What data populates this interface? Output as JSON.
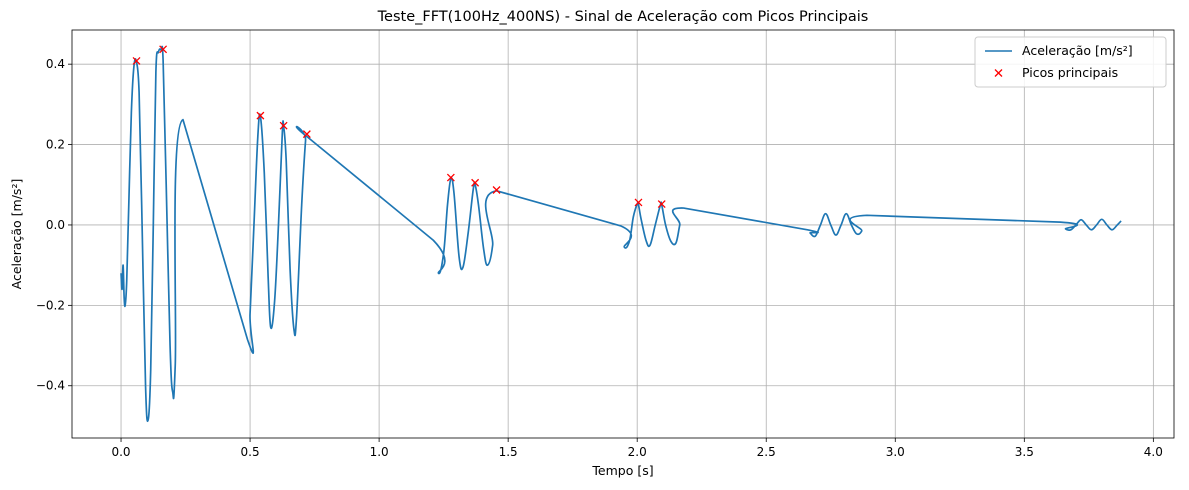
{
  "chart_data": {
    "type": "line",
    "title": "Teste_FFT(100Hz_400NS) - Sinal de Aceleração com Picos Principais",
    "xlabel": "Tempo [s]",
    "ylabel": "Aceleração [m/s²]",
    "xlim": [
      -0.19,
      4.08
    ],
    "ylim": [
      -0.53,
      0.485
    ],
    "xticks": [
      0.0,
      0.5,
      1.0,
      1.5,
      2.0,
      2.5,
      3.0,
      3.5,
      4.0
    ],
    "xtick_labels": [
      "0.0",
      "0.5",
      "1.0",
      "1.5",
      "2.0",
      "2.5",
      "3.0",
      "3.5",
      "4.0"
    ],
    "yticks": [
      -0.4,
      -0.2,
      0.0,
      0.2,
      0.4
    ],
    "ytick_labels": [
      "−0.4",
      "−0.2",
      "0.0",
      "0.2",
      "0.4"
    ],
    "grid": true,
    "legend_position": "top-right",
    "series": [
      {
        "name": "Aceleração [m/s²]",
        "kind": "line",
        "color": "#1f77b4",
        "x": [
          0.0,
          0.004,
          0.008,
          0.012,
          0.016,
          0.022,
          0.03,
          0.04,
          0.05,
          0.06,
          0.07,
          0.08,
          0.095,
          0.105,
          0.115,
          0.125,
          0.135,
          0.145,
          0.155,
          0.163,
          0.175,
          0.19,
          0.2,
          0.21,
          0.24,
          0.49,
          0.5,
          0.515,
          0.53,
          0.54,
          0.555,
          0.57,
          0.58,
          0.595,
          0.61,
          0.625,
          0.63,
          0.64,
          0.655,
          0.67,
          0.68,
          0.7,
          0.715,
          0.72,
          1.21,
          1.23,
          1.25,
          1.265,
          1.278,
          1.29,
          1.31,
          1.325,
          1.345,
          1.365,
          1.372,
          1.385,
          1.405,
          1.42,
          1.44,
          1.455,
          1.935,
          1.95,
          1.97,
          1.985,
          2.0,
          2.005,
          2.015,
          2.035,
          2.05,
          2.07,
          2.09,
          2.095,
          2.11,
          2.13,
          2.15,
          2.165,
          2.18,
          2.66,
          2.67,
          2.69,
          2.71,
          2.73,
          2.75,
          2.77,
          2.79,
          2.81,
          2.83,
          2.85,
          2.87,
          2.89,
          3.64,
          3.66,
          3.68,
          3.7,
          3.72,
          3.74,
          3.76,
          3.78,
          3.8,
          3.82,
          3.84,
          3.86,
          3.875
        ],
        "y": [
          -0.12,
          -0.16,
          -0.1,
          -0.18,
          -0.2,
          -0.14,
          0.05,
          0.28,
          0.395,
          0.405,
          0.33,
          0.05,
          -0.4,
          -0.485,
          -0.36,
          0.0,
          0.38,
          0.43,
          0.435,
          0.41,
          0.1,
          -0.3,
          -0.415,
          -0.35,
          0.262,
          -0.285,
          -0.22,
          0.0,
          0.22,
          0.27,
          0.13,
          -0.13,
          -0.255,
          -0.19,
          0.0,
          0.23,
          0.245,
          0.16,
          -0.11,
          -0.26,
          -0.23,
          0.05,
          0.21,
          0.22,
          -0.038,
          -0.12,
          -0.07,
          0.05,
          0.115,
          0.08,
          -0.08,
          -0.105,
          -0.02,
          0.09,
          0.1,
          0.05,
          -0.06,
          -0.1,
          -0.05,
          0.085,
          -0.002,
          -0.055,
          -0.04,
          0.02,
          0.052,
          0.05,
          0.015,
          -0.04,
          -0.05,
          0.0,
          0.05,
          0.05,
          0.0,
          -0.04,
          -0.045,
          0.0,
          0.042,
          -0.012,
          -0.02,
          -0.028,
          0.0,
          0.028,
          0.0,
          -0.025,
          0.0,
          0.028,
          0.0,
          -0.022,
          -0.015,
          0.024,
          0.007,
          -0.01,
          -0.012,
          0.0,
          0.013,
          0.0,
          -0.012,
          0.0,
          0.014,
          0.0,
          -0.012,
          0.0,
          0.01
        ]
      },
      {
        "name": "Picos principais",
        "kind": "markers",
        "marker": "x",
        "color": "#ff0000",
        "x": [
          0.06,
          0.163,
          0.54,
          0.63,
          0.72,
          1.278,
          1.372,
          1.455,
          2.005,
          2.095
        ],
        "y": [
          0.408,
          0.437,
          0.272,
          0.247,
          0.226,
          0.118,
          0.105,
          0.087,
          0.056,
          0.052
        ]
      }
    ]
  }
}
